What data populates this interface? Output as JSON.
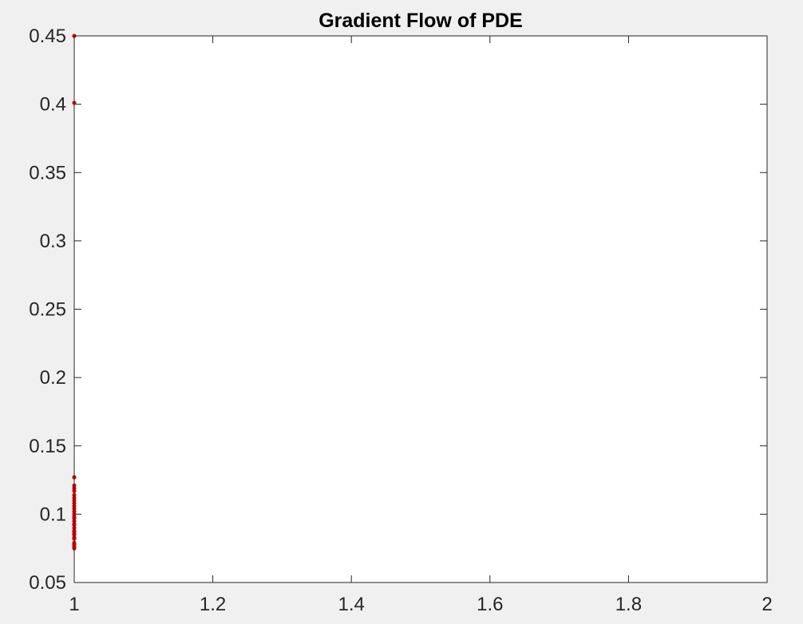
{
  "chart_data": {
    "type": "scatter",
    "title": "Gradient Flow of PDE",
    "xlabel": "",
    "ylabel": "",
    "xlim": [
      1,
      2
    ],
    "ylim": [
      0.05,
      0.45
    ],
    "xticks": [
      "1",
      "1.2",
      "1.4",
      "1.6",
      "1.8",
      "2"
    ],
    "yticks": [
      "0.05",
      "0.1",
      "0.15",
      "0.2",
      "0.25",
      "0.3",
      "0.35",
      "0.4",
      "0.45"
    ],
    "grid": false,
    "marker_color": "#e00000",
    "series": [
      {
        "x": [
          1,
          1,
          1,
          1,
          1,
          1,
          1,
          1,
          1,
          1,
          1,
          1,
          1,
          1,
          1,
          1,
          1,
          1,
          1,
          1,
          1,
          1,
          1,
          1,
          1,
          1,
          1,
          1,
          1,
          1,
          1
        ],
        "y": [
          0.45,
          0.401,
          0.127,
          0.121,
          0.119,
          0.117,
          0.114,
          0.112,
          0.11,
          0.108,
          0.106,
          0.104,
          0.102,
          0.1,
          0.098,
          0.097,
          0.095,
          0.093,
          0.092,
          0.09,
          0.088,
          0.087,
          0.086,
          0.085,
          0.083,
          0.082,
          0.079,
          0.078,
          0.077,
          0.076,
          0.075
        ]
      }
    ]
  }
}
